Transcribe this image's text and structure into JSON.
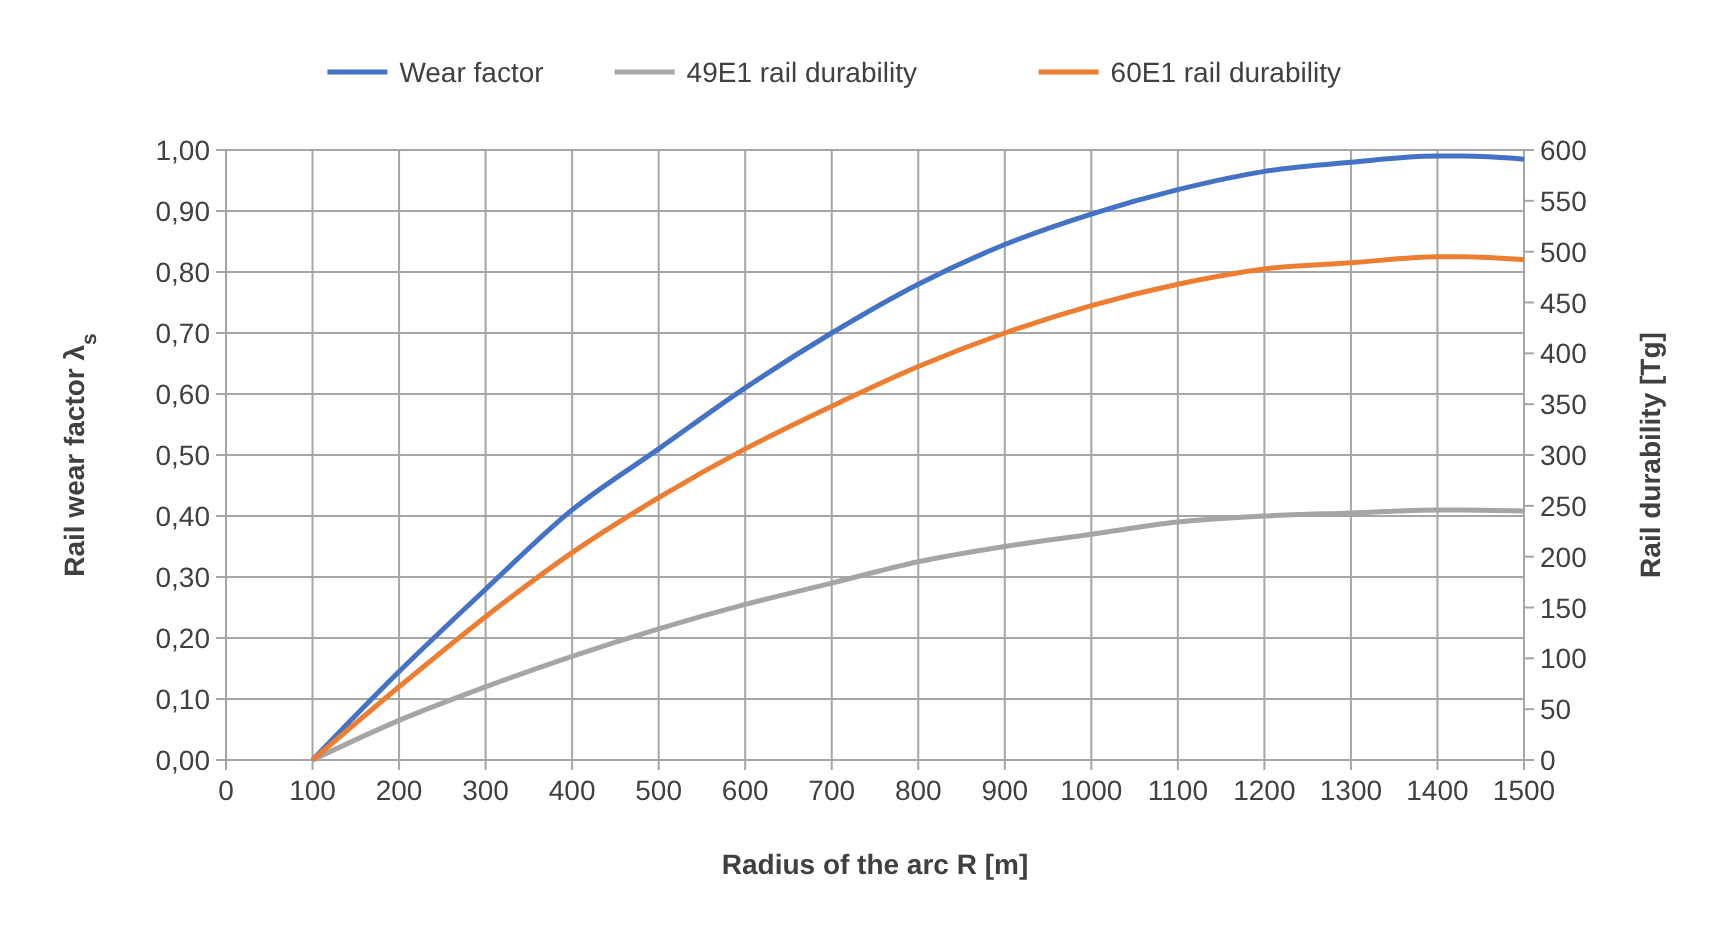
{
  "chart_data": {
    "type": "line",
    "xlabel": "Radius of the arc R [m]",
    "ylabel": "Rail wear factor λ$_{s}$",
    "y2label": "Rail durability [Tg]",
    "x": [
      100,
      200,
      300,
      400,
      500,
      600,
      700,
      800,
      900,
      1000,
      1100,
      1200,
      1300,
      1400,
      1430,
      1500
    ],
    "series": [
      {
        "name": "Wear factor",
        "color": "#4472c4",
        "values": [
          0,
          0.145,
          0.28,
          0.41,
          0.51,
          0.61,
          0.7,
          0.78,
          0.845,
          0.895,
          0.935,
          0.965,
          0.98,
          0.99,
          0.99,
          0.985
        ]
      },
      {
        "name": "49E1 rail durability",
        "color": "#a5a5a5",
        "axis": "y2",
        "values": [
          0,
          39,
          72,
          102,
          129,
          153,
          174,
          195,
          210,
          222,
          234,
          240,
          243,
          246,
          246,
          245
        ]
      },
      {
        "name": "60E1 rail durability",
        "color": "#ed7d31",
        "axis": "y2",
        "values": [
          0,
          72,
          141,
          204,
          258,
          306,
          348,
          387,
          420,
          447,
          468,
          483,
          489,
          495,
          495,
          492
        ]
      }
    ],
    "xlim": [
      0,
      1500
    ],
    "xticks": [
      0,
      100,
      200,
      300,
      400,
      500,
      600,
      700,
      800,
      900,
      1000,
      1100,
      1200,
      1300,
      1400,
      1500
    ],
    "ylim": [
      0,
      1
    ],
    "yticks": [
      {
        "value": 0,
        "label": "0,00"
      },
      {
        "value": 0.1,
        "label": "0,10"
      },
      {
        "value": 0.2,
        "label": "0,20"
      },
      {
        "value": 0.3,
        "label": "0,30"
      },
      {
        "value": 0.4,
        "label": "0,40"
      },
      {
        "value": 0.5,
        "label": "0,50"
      },
      {
        "value": 0.6,
        "label": "0,60"
      },
      {
        "value": 0.7,
        "label": "0,70"
      },
      {
        "value": 0.8,
        "label": "0,80"
      },
      {
        "value": 0.9,
        "label": "0,90"
      },
      {
        "value": 1,
        "label": "1,00"
      }
    ],
    "y2lim": [
      0,
      600
    ],
    "y2ticks": [
      0,
      50,
      100,
      150,
      200,
      250,
      300,
      350,
      400,
      450,
      500,
      550,
      600
    ],
    "grid": true,
    "legend": "top",
    "marker": "none",
    "line_style": "solid"
  }
}
